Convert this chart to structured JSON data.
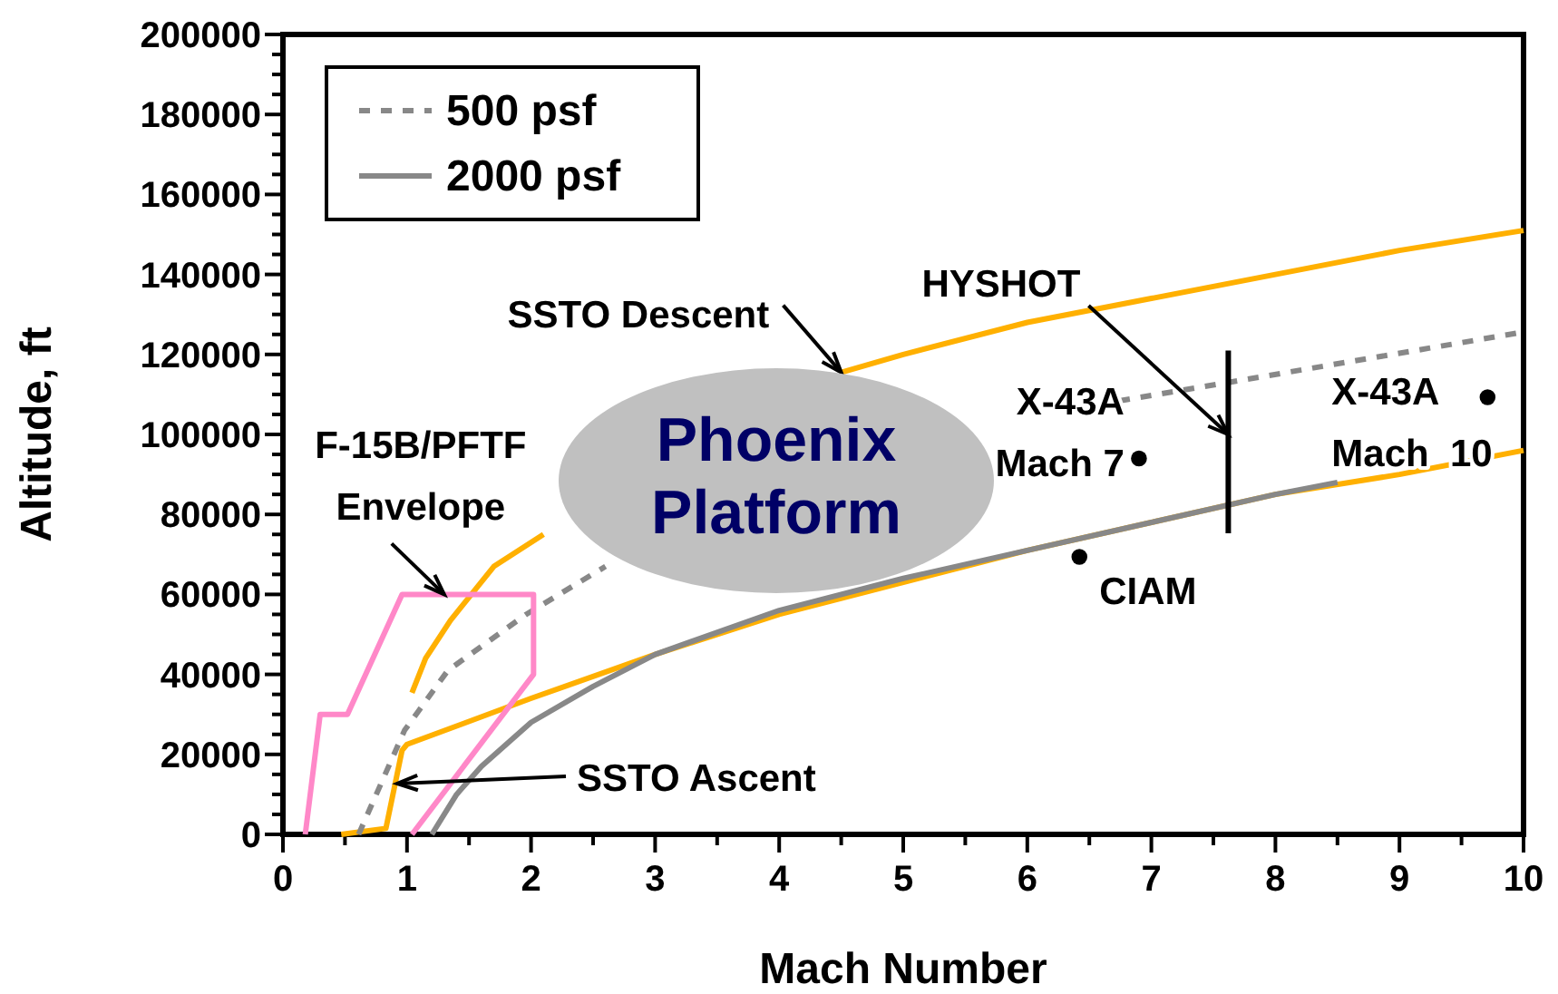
{
  "chart_data": {
    "type": "line",
    "xlabel": "Mach Number",
    "ylabel": "Altitude, ft",
    "xlim": [
      0,
      10
    ],
    "ylim": [
      0,
      200000
    ],
    "xticks": [
      0,
      {
        "value": 0.5,
        "label": null
      },
      1,
      {
        "value": 1.5,
        "label": null
      },
      2,
      {
        "value": 2.5,
        "label": null
      },
      3,
      {
        "value": 3.5,
        "label": null
      },
      4,
      {
        "value": 4.5,
        "label": null
      },
      5,
      {
        "value": 5.5,
        "label": null
      },
      6,
      {
        "value": 6.5,
        "label": null
      },
      7,
      {
        "value": 7.5,
        "label": null
      },
      8,
      {
        "value": 8.5,
        "label": null
      },
      9,
      {
        "value": 9.5,
        "label": null
      },
      10
    ],
    "yticks": [
      0,
      {
        "value": 5000,
        "label": null
      },
      {
        "value": 10000,
        "label": null
      },
      {
        "value": 15000,
        "label": null
      },
      20000,
      {
        "value": 25000,
        "label": null
      },
      {
        "value": 30000,
        "label": null
      },
      {
        "value": 35000,
        "label": null
      },
      40000,
      {
        "value": 45000,
        "label": null
      },
      {
        "value": 50000,
        "label": null
      },
      {
        "value": 55000,
        "label": null
      },
      60000,
      {
        "value": 65000,
        "label": null
      },
      {
        "value": 70000,
        "label": null
      },
      {
        "value": 75000,
        "label": null
      },
      80000,
      {
        "value": 85000,
        "label": null
      },
      {
        "value": 90000,
        "label": null
      },
      {
        "value": 95000,
        "label": null
      },
      100000,
      {
        "value": 105000,
        "label": null
      },
      {
        "value": 110000,
        "label": null
      },
      {
        "value": 115000,
        "label": null
      },
      120000,
      {
        "value": 125000,
        "label": null
      },
      {
        "value": 130000,
        "label": null
      },
      {
        "value": 135000,
        "label": null
      },
      140000,
      {
        "value": 145000,
        "label": null
      },
      {
        "value": 150000,
        "label": null
      },
      {
        "value": 155000,
        "label": null
      },
      160000,
      {
        "value": 165000,
        "label": null
      },
      {
        "value": 170000,
        "label": null
      },
      {
        "value": 175000,
        "label": null
      },
      180000,
      {
        "value": 185000,
        "label": null
      },
      {
        "value": 190000,
        "label": null
      },
      {
        "value": 195000,
        "label": null
      },
      200000
    ],
    "grid": false,
    "legend": "top left",
    "series": [
      {
        "color": "#ffb000",
        "x": [
          1.04,
          1.15,
          1.35,
          1.7,
          2.1,
          3,
          4.5,
          5,
          6,
          7,
          8,
          9,
          10
        ],
        "values": [
          35400,
          44000,
          53500,
          67000,
          75000,
          null,
          115500,
          120000,
          128000,
          134000,
          140000,
          146000,
          151000
        ]
      },
      {
        "color": "#ffb000",
        "x": [
          0.47,
          0.83,
          0.96,
          1,
          2,
          3,
          4,
          5,
          6,
          7,
          8,
          9,
          10
        ],
        "values": [
          0,
          1500,
          21000,
          22500,
          34000,
          45000,
          55000,
          63000,
          71000,
          78000,
          85000,
          90000,
          96000
        ]
      },
      {
        "name": "2000 psf",
        "color": "#888888",
        "line_style": "solid",
        "x": [
          1.2,
          1.4,
          1.6,
          2,
          2.5,
          3,
          4,
          5,
          6,
          7,
          8,
          8.5
        ],
        "values": [
          0,
          10000,
          17000,
          28000,
          37000,
          45000,
          56000,
          64000,
          71000,
          78000,
          85000,
          88000
        ]
      },
      {
        "name": "500 psf",
        "color": "#888888",
        "line_style": "dashed",
        "x": [
          0.61,
          0.98,
          1.33,
          1.96,
          2.6,
          4,
          6.74,
          7.62,
          10
        ],
        "values": [
          0,
          26000,
          41000,
          55000,
          67000,
          null,
          108400,
          113000,
          125600
        ]
      },
      {
        "color": "#ff88c8",
        "x": [
          0.18,
          0.3,
          0.52,
          0.96,
          2.02,
          2.02,
          1.04
        ],
        "values": [
          0,
          30000,
          30000,
          60000,
          60000,
          40000,
          0
        ]
      },
      {
        "type": "scatter",
        "color": "#000000",
        "marker": "circle",
        "x": [
          6.9,
          9.71,
          6.42
        ],
        "values": [
          94000,
          109300,
          69400
        ]
      },
      {
        "color": "#000000",
        "line_style": "solid",
        "x": [
          7.62,
          7.62
        ],
        "values": [
          75300,
          121000
        ]
      }
    ],
    "annotations": [
      {
        "text": "SSTO Descent",
        "x": 4.5,
        "y": 115500
      },
      "SSTO Ascent",
      {
        "text": "F-15B/PFTF Envelope",
        "x": 1.3,
        "y": 60000
      },
      {
        "text": "HYSHOT",
        "x": 7.62,
        "y": 100000
      },
      {
        "text": "X-43A Mach 7",
        "x": 6.9,
        "y": 94000
      },
      {
        "text": "X-43A Mach  10",
        "x": 9.71,
        "y": 109300
      },
      {
        "text": "CIAM",
        "x": 6.42,
        "y": 69400
      },
      "Phoenix Platform"
    ]
  }
}
